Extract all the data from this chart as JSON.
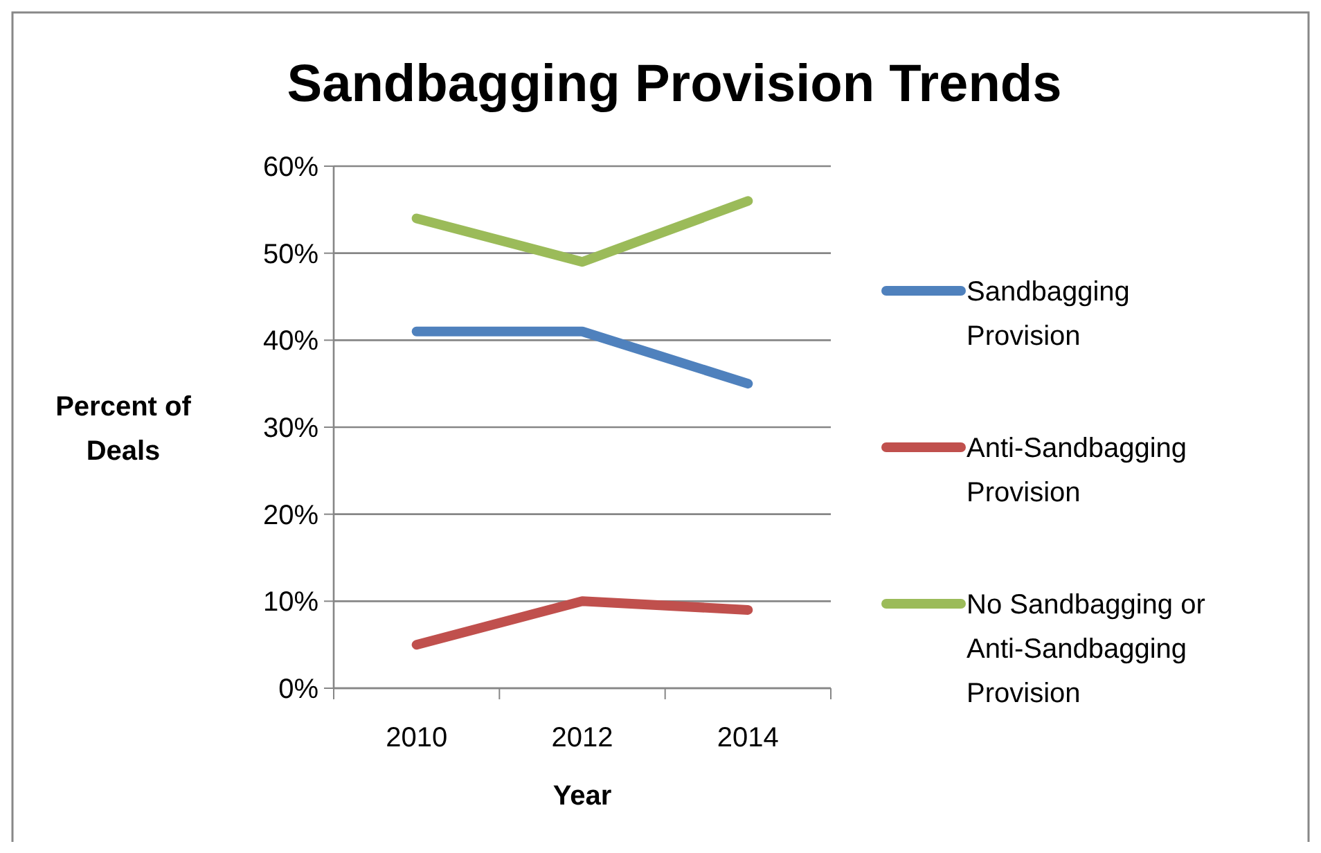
{
  "chart_data": {
    "type": "line",
    "title": "Sandbagging Provision Trends",
    "xlabel": "Year",
    "ylabel": "Percent of Deals",
    "categories": [
      "2010",
      "2012",
      "2014"
    ],
    "series": [
      {
        "name": "Sandbagging Provision",
        "color": "#4f81bd",
        "values": [
          41,
          41,
          35
        ]
      },
      {
        "name": "Anti-Sandbagging Provision",
        "color": "#c0504d",
        "values": [
          5,
          10,
          9
        ]
      },
      {
        "name": "No Sandbagging or Anti-Sandbagging Provision",
        "color": "#9bbb59",
        "values": [
          54,
          49,
          56
        ]
      }
    ],
    "ylim": [
      0,
      60
    ],
    "yticks": [
      {
        "value": 0,
        "label": "0%"
      },
      {
        "value": 10,
        "label": "10%"
      },
      {
        "value": 20,
        "label": "20%"
      },
      {
        "value": 30,
        "label": "30%"
      },
      {
        "value": 40,
        "label": "40%"
      },
      {
        "value": 50,
        "label": "50%"
      },
      {
        "value": 60,
        "label": "60%"
      }
    ],
    "grid": "y",
    "legend": "right",
    "marker": "none",
    "line_style": "solid"
  }
}
